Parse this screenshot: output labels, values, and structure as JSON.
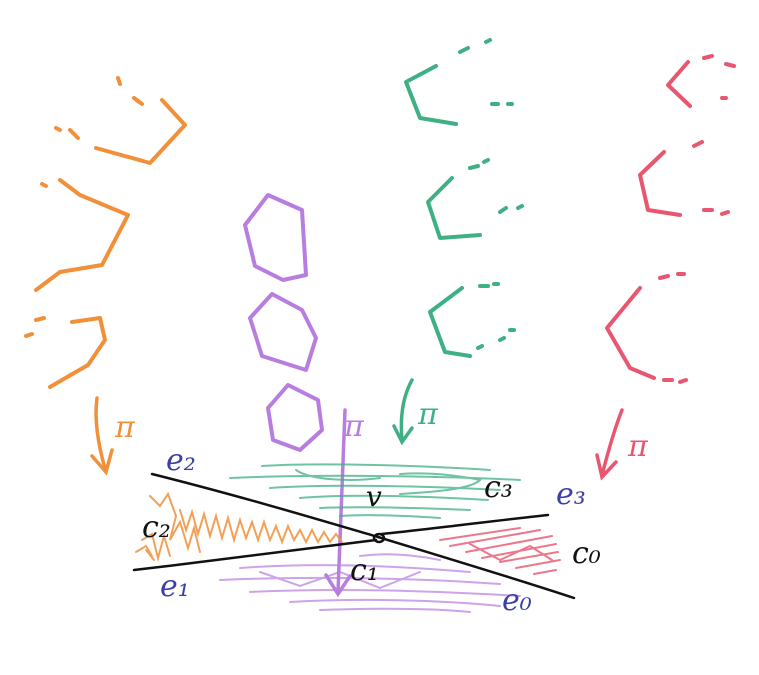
{
  "colors": {
    "orange": "#f2903a",
    "purple": "#b77ee0",
    "green": "#3fb083",
    "pink": "#e8566f",
    "black": "#111111",
    "navy": "#3b3fa8"
  },
  "labels": {
    "vertex": "v",
    "pi": "π",
    "e0": "e₀",
    "e1": "e₁",
    "e2": "e₂",
    "e3": "e₃",
    "c0": "c₀",
    "c1": "c₁",
    "c2": "c₂",
    "c3": "c₃"
  }
}
